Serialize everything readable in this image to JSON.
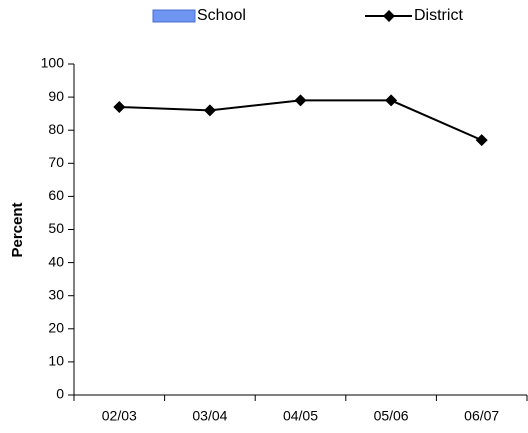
{
  "chart_data": {
    "type": "bar",
    "categories": [
      "02/03",
      "03/04",
      "04/05",
      "05/06",
      "06/07"
    ],
    "series": [
      {
        "name": "School",
        "color": "#6f95f2",
        "values": [
          null,
          null,
          null,
          null,
          null
        ]
      },
      {
        "name": "District",
        "color": "#000000",
        "type": "line",
        "values": [
          87,
          86,
          89,
          89,
          77
        ]
      }
    ],
    "y_label": "Percent",
    "ylim": [
      0,
      100
    ],
    "yticks": [
      0,
      10,
      20,
      30,
      40,
      50,
      60,
      70,
      80,
      90,
      100
    ],
    "grid": false,
    "legend": "top"
  }
}
